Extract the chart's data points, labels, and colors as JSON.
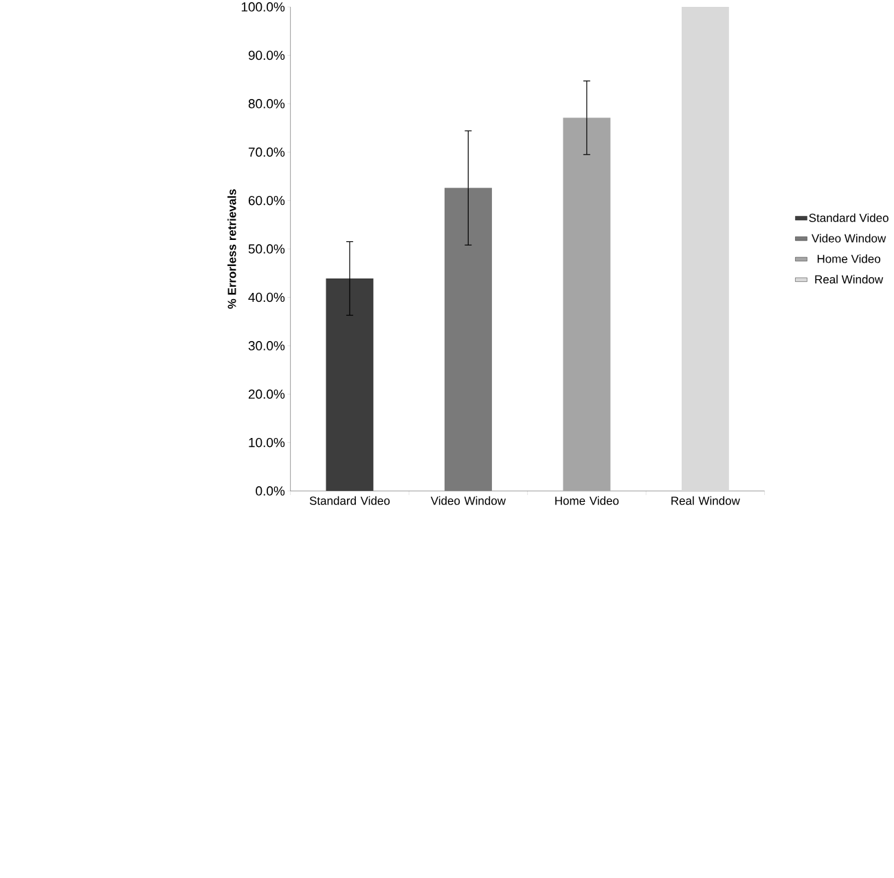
{
  "chart_data": {
    "type": "bar",
    "ylabel": "% Errorless retrievals",
    "categories": [
      "Standard Video",
      "Video Window",
      "Home Video",
      "Real Window"
    ],
    "series": [
      {
        "name": "Standard Video",
        "color": "#3d3d3d",
        "values": [
          43.9,
          null,
          null,
          null
        ],
        "errors": [
          7.6,
          null,
          null,
          null
        ]
      },
      {
        "name": "Video Window",
        "color": "#7a7a7a",
        "values": [
          null,
          62.6,
          null,
          null
        ],
        "errors": [
          null,
          11.8,
          null,
          null
        ]
      },
      {
        "name": "Home Video",
        "color": "#a5a5a5",
        "values": [
          null,
          null,
          77.1,
          null
        ],
        "errors": [
          null,
          null,
          7.6,
          null
        ]
      },
      {
        "name": "Real Window",
        "color": "#d9d9d9",
        "values": [
          null,
          null,
          null,
          100
        ],
        "errors": [
          null,
          null,
          null,
          null
        ]
      }
    ],
    "ylim": [
      0,
      100
    ],
    "yticks": [
      {
        "value": 0,
        "label": "0.0%"
      },
      {
        "value": 10,
        "label": "10.0%"
      },
      {
        "value": 20,
        "label": "20.0%"
      },
      {
        "value": 30,
        "label": "30.0%"
      },
      {
        "value": 40,
        "label": "40.0%"
      },
      {
        "value": 50,
        "label": "50.0%"
      },
      {
        "value": 60,
        "label": "60.0%"
      },
      {
        "value": 70,
        "label": "70.0%"
      },
      {
        "value": 80,
        "label": "80.0%"
      },
      {
        "value": 90,
        "label": "90.0%"
      },
      {
        "value": 100,
        "label": "100.0%"
      }
    ],
    "grid": false,
    "legend": "right"
  }
}
